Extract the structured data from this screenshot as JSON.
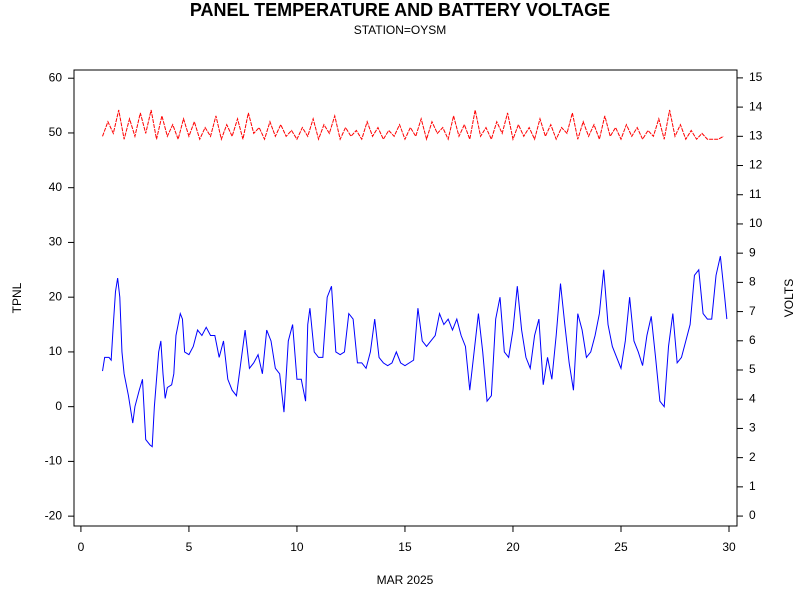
{
  "chart_data": {
    "type": "line",
    "title": "PANEL TEMPERATURE AND BATTERY VOLTAGE",
    "subtitle": "STATION=OYSM",
    "xlabel": "MAR 2025",
    "ylabel": "TPNL",
    "y2label": "VOLTS",
    "xlim": [
      -0.32,
      30.37
    ],
    "xticks": [
      0,
      5,
      10,
      15,
      20,
      25,
      30
    ],
    "ylim": [
      -21.8,
      61.5
    ],
    "yticks": [
      -20,
      -10,
      0,
      10,
      20,
      30,
      40,
      50,
      60
    ],
    "y2lim": [
      -0.34,
      15.27
    ],
    "y2ticks": [
      0,
      1,
      2,
      3,
      4,
      5,
      6,
      7,
      8,
      9,
      10,
      11,
      12,
      13,
      14,
      15
    ],
    "series": [
      {
        "name": "TPNL",
        "color": "#0000ff",
        "axis": "y",
        "x": [
          1.0,
          1.1,
          1.3,
          1.4,
          1.5,
          1.6,
          1.7,
          1.8,
          1.9,
          2.0,
          2.2,
          2.4,
          2.5,
          2.7,
          2.85,
          3.0,
          3.2,
          3.3,
          3.4,
          3.6,
          3.7,
          3.8,
          3.9,
          4.0,
          4.2,
          4.3,
          4.4,
          4.6,
          4.7,
          4.8,
          5.0,
          5.2,
          5.4,
          5.6,
          5.8,
          6.0,
          6.2,
          6.4,
          6.6,
          6.8,
          7.0,
          7.2,
          7.4,
          7.6,
          7.8,
          8.0,
          8.2,
          8.4,
          8.6,
          8.8,
          9.0,
          9.2,
          9.4,
          9.6,
          9.8,
          9.9,
          10.0,
          10.2,
          10.4,
          10.5,
          10.6,
          10.8,
          11.0,
          11.2,
          11.4,
          11.6,
          11.8,
          12.0,
          12.2,
          12.4,
          12.6,
          12.8,
          13.0,
          13.2,
          13.4,
          13.6,
          13.8,
          14.0,
          14.2,
          14.4,
          14.6,
          14.8,
          15.0,
          15.4,
          15.6,
          15.8,
          16.0,
          16.2,
          16.4,
          16.6,
          16.8,
          17.0,
          17.2,
          17.4,
          17.6,
          17.8,
          18.0,
          18.2,
          18.4,
          18.6,
          18.8,
          19.0,
          19.2,
          19.4,
          19.6,
          19.8,
          20.0,
          20.2,
          20.4,
          20.6,
          20.8,
          21.0,
          21.2,
          21.4,
          21.6,
          21.8,
          22.0,
          22.2,
          22.4,
          22.6,
          22.8,
          23.0,
          23.2,
          23.4,
          23.6,
          23.8,
          24.0,
          24.2,
          24.4,
          24.6,
          24.8,
          25.0,
          25.2,
          25.4,
          25.6,
          25.8,
          26.0,
          26.2,
          26.4,
          26.6,
          26.8,
          27.0,
          27.2,
          27.4,
          27.6,
          27.8,
          28.0,
          28.2,
          28.4,
          28.6,
          28.8,
          29.0,
          29.2,
          29.4,
          29.6,
          29.8,
          29.9
        ],
        "values": [
          6.5,
          9,
          9,
          8.5,
          15,
          21,
          23.5,
          20,
          10,
          6,
          2,
          -3,
          0,
          3,
          5,
          -6,
          -7,
          -7.3,
          0,
          10,
          12,
          6,
          1.5,
          3.5,
          4,
          6,
          13,
          17,
          16,
          10,
          9.5,
          11,
          14,
          13,
          14.5,
          13,
          13,
          9,
          12,
          5,
          3,
          2,
          8,
          14,
          7,
          8,
          9.5,
          6,
          14,
          12,
          7,
          6,
          -1,
          12,
          15,
          10,
          5,
          5,
          1,
          15,
          18,
          10,
          9,
          9,
          20,
          22,
          10,
          9.5,
          10,
          17,
          16,
          8,
          8,
          7,
          10,
          16,
          9,
          8,
          7.5,
          8,
          10,
          8,
          7.5,
          8.5,
          18,
          12,
          11,
          12,
          13,
          17,
          15,
          16,
          14,
          16,
          13,
          11,
          3,
          10,
          17,
          10,
          1,
          2,
          16,
          20,
          10,
          9,
          14,
          22,
          14,
          9,
          7,
          13,
          16,
          4,
          9,
          5,
          13,
          22.5,
          15,
          8,
          3,
          17,
          14,
          9,
          10,
          13,
          17,
          25,
          15,
          11,
          9,
          7,
          12,
          20,
          12,
          10,
          7.5,
          13,
          16.5,
          9,
          1,
          0,
          11,
          17,
          8,
          9,
          12,
          15,
          24,
          25,
          17,
          16,
          16,
          24,
          27.5,
          20,
          16
        ]
      },
      {
        "name": "VOLTS",
        "color": "#ff0000",
        "axis": "y2",
        "x": [
          1.0,
          1.25,
          1.5,
          1.75,
          2.0,
          2.25,
          2.5,
          2.75,
          3.0,
          3.25,
          3.5,
          3.75,
          4.0,
          4.25,
          4.5,
          4.75,
          5.0,
          5.25,
          5.5,
          5.75,
          6.0,
          6.25,
          6.5,
          6.75,
          7.0,
          7.25,
          7.5,
          7.75,
          8.0,
          8.25,
          8.5,
          8.75,
          9.0,
          9.25,
          9.5,
          9.75,
          10.0,
          10.25,
          10.5,
          10.75,
          11.0,
          11.25,
          11.5,
          11.75,
          12.0,
          12.25,
          12.5,
          12.75,
          13.0,
          13.25,
          13.5,
          13.75,
          14.0,
          14.25,
          14.5,
          14.75,
          15.0,
          15.25,
          15.5,
          15.75,
          16.0,
          16.25,
          16.5,
          16.75,
          17.0,
          17.25,
          17.5,
          17.75,
          18.0,
          18.25,
          18.5,
          18.75,
          19.0,
          19.25,
          19.5,
          19.75,
          20.0,
          20.25,
          20.5,
          20.75,
          21.0,
          21.25,
          21.5,
          21.75,
          22.0,
          22.25,
          22.5,
          22.75,
          23.0,
          23.25,
          23.5,
          23.75,
          24.0,
          24.25,
          24.5,
          24.75,
          25.0,
          25.25,
          25.5,
          25.75,
          26.0,
          26.25,
          26.5,
          26.75,
          27.0,
          27.25,
          27.5,
          27.75,
          28.0,
          28.25,
          28.5,
          28.75,
          29.0,
          29.25,
          29.5,
          29.75
        ],
        "values": [
          13.0,
          13.5,
          13.1,
          13.9,
          12.9,
          13.6,
          13.0,
          13.8,
          13.1,
          13.9,
          12.9,
          13.7,
          13.0,
          13.4,
          12.9,
          13.6,
          13.0,
          13.5,
          12.9,
          13.3,
          13.0,
          13.7,
          12.9,
          13.4,
          13.0,
          13.6,
          12.9,
          13.8,
          13.1,
          13.3,
          12.9,
          13.5,
          13.0,
          13.4,
          13.0,
          13.2,
          12.9,
          13.3,
          13.0,
          13.6,
          12.9,
          13.4,
          13.1,
          13.7,
          12.9,
          13.3,
          13.0,
          13.2,
          12.9,
          13.5,
          13.0,
          13.3,
          12.9,
          13.2,
          13.0,
          13.4,
          12.9,
          13.3,
          13.0,
          13.6,
          12.9,
          13.5,
          13.1,
          13.3,
          12.9,
          13.7,
          13.0,
          13.4,
          12.9,
          13.9,
          13.0,
          13.3,
          12.9,
          13.5,
          13.1,
          13.8,
          12.9,
          13.4,
          13.0,
          13.3,
          12.9,
          13.6,
          13.0,
          13.4,
          12.9,
          13.3,
          13.1,
          13.8,
          12.9,
          13.5,
          13.0,
          13.4,
          12.9,
          13.7,
          13.0,
          13.3,
          12.9,
          13.4,
          13.0,
          13.3,
          12.9,
          13.2,
          13.0,
          13.6,
          12.9,
          13.9,
          13.0,
          13.4,
          12.9,
          13.2,
          12.9,
          13.1,
          12.9,
          12.9,
          12.9,
          13.0
        ]
      }
    ]
  }
}
